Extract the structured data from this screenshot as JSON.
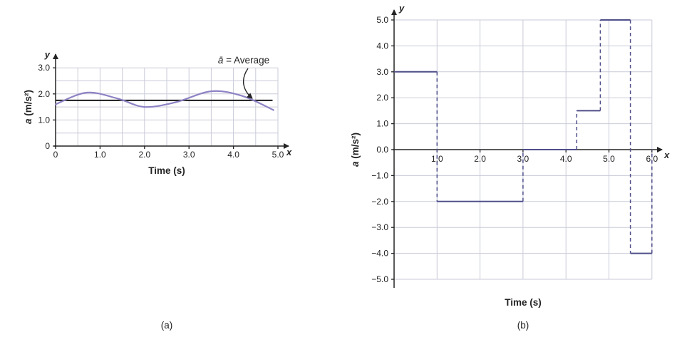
{
  "figure": {
    "caption_a": "(a)",
    "caption_b": "(b)"
  },
  "colors": {
    "grid": "#c9cbd8",
    "axis": "#232323",
    "text": "#232323",
    "curve": "#8d82c4",
    "average_line": "#1a1a1a",
    "step_line": "#4f4f8a"
  },
  "chart_data": [
    {
      "type": "line",
      "xlabel": "Time (s)",
      "ylabel_var": "a",
      "ylabel_units": " (m/s²)",
      "axis_letter_x": "x",
      "axis_letter_y": "y",
      "xlim": [
        0,
        5.0
      ],
      "ylim": [
        0,
        3.0
      ],
      "grid_step": 0.5,
      "xticks": [
        {
          "v": 0,
          "t": "0"
        },
        {
          "v": 1,
          "t": "1.0"
        },
        {
          "v": 2,
          "t": "2.0"
        },
        {
          "v": 3,
          "t": "3.0"
        },
        {
          "v": 4,
          "t": "4.0"
        },
        {
          "v": 5,
          "t": "5.0"
        }
      ],
      "yticks": [
        {
          "v": 0,
          "t": "0"
        },
        {
          "v": 1,
          "t": "1.0"
        },
        {
          "v": 2,
          "t": "2.0"
        },
        {
          "v": 3,
          "t": "3.0"
        }
      ],
      "points": [
        [
          0,
          1.6
        ],
        [
          0.7,
          2.05
        ],
        [
          1.4,
          1.82
        ],
        [
          2.0,
          1.5
        ],
        [
          2.7,
          1.68
        ],
        [
          3.5,
          2.1
        ],
        [
          4.2,
          1.92
        ],
        [
          4.9,
          1.38
        ]
      ],
      "average_value": 1.75,
      "average_span": [
        0,
        4.88
      ],
      "annotation": {
        "var": "ā",
        "rest": " = Average"
      }
    },
    {
      "type": "step",
      "xlabel": "Time (s)",
      "ylabel_var": "a",
      "ylabel_units": " (m/s²)",
      "axis_letter_x": "x",
      "axis_letter_y": "y",
      "xlim": [
        0,
        6.0
      ],
      "ylim": [
        -5.0,
        5.0
      ],
      "grid_step": 1.0,
      "xticks": [
        {
          "v": 1,
          "t": "1.0"
        },
        {
          "v": 2,
          "t": "2.0"
        },
        {
          "v": 3,
          "t": "3.0"
        },
        {
          "v": 4,
          "t": "4.0"
        },
        {
          "v": 5,
          "t": "5.0"
        },
        {
          "v": 6,
          "t": "6.0"
        }
      ],
      "yticks": [
        {
          "v": 5,
          "t": "5.0"
        },
        {
          "v": 4,
          "t": "4.0"
        },
        {
          "v": 3,
          "t": "3.0"
        },
        {
          "v": 2,
          "t": "2.0"
        },
        {
          "v": 1,
          "t": "1.0"
        },
        {
          "v": 0,
          "t": "0.0"
        },
        {
          "v": -1,
          "t": "−1.0"
        },
        {
          "v": -2,
          "t": "−2.0"
        },
        {
          "v": -3,
          "t": "−3.0"
        },
        {
          "v": -4,
          "t": "−4.0"
        },
        {
          "v": -5,
          "t": "−5.0"
        }
      ],
      "segments": [
        {
          "x0": 0,
          "x1": 1,
          "y": 3.0
        },
        {
          "x0": 1,
          "x1": 3,
          "y": -2.0
        },
        {
          "x0": 3,
          "x1": 4.25,
          "y": 0.0
        },
        {
          "x0": 4.25,
          "x1": 4.8,
          "y": 1.5
        },
        {
          "x0": 4.8,
          "x1": 5.5,
          "y": 5.0
        },
        {
          "x0": 5.5,
          "x1": 6,
          "y": -4.0
        }
      ],
      "closing_dash_to": 0.0
    }
  ]
}
